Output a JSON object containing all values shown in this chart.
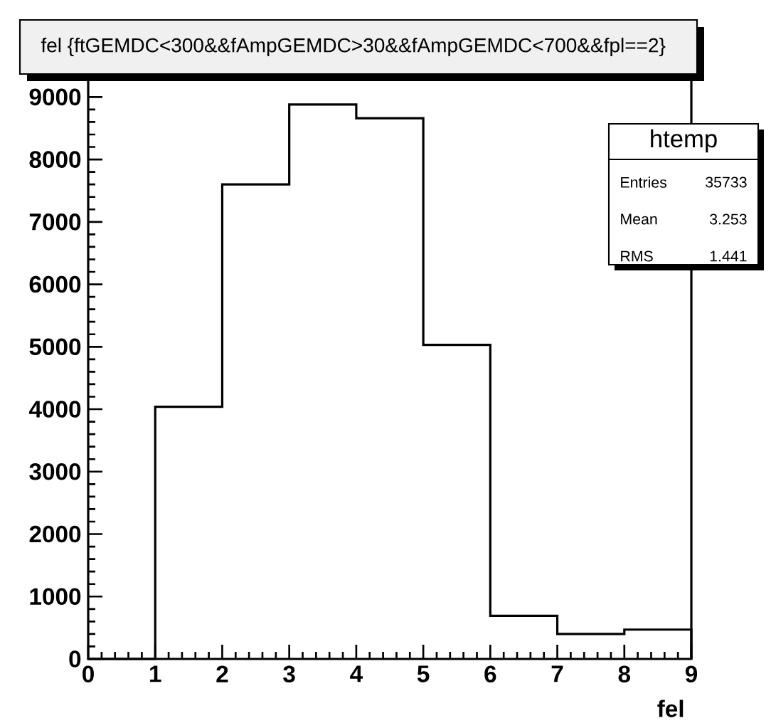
{
  "chart_data": {
    "type": "histogram",
    "title": "fel {ftGEMDC<300&&fAmpGEMDC>30&&fAmpGEMDC<700&&fpl==2}",
    "xlabel": "fel",
    "bins": [
      0,
      1,
      2,
      3,
      4,
      5,
      6,
      7,
      8,
      9
    ],
    "values": [
      0,
      4040,
      7600,
      8880,
      8660,
      5030,
      690,
      400,
      470
    ],
    "color": "#000000",
    "xlim": [
      0,
      9
    ],
    "ylim": [
      0,
      9300
    ],
    "xticks": [
      0,
      1,
      2,
      3,
      4,
      5,
      6,
      7,
      8,
      9
    ],
    "yticks": [
      0,
      1000,
      2000,
      3000,
      4000,
      5000,
      6000,
      7000,
      8000,
      9000
    ],
    "annotations": [
      "htemp",
      "Entries",
      "35733",
      "Mean",
      "3.253",
      "RMS",
      "1.441"
    ],
    "grid": false
  }
}
